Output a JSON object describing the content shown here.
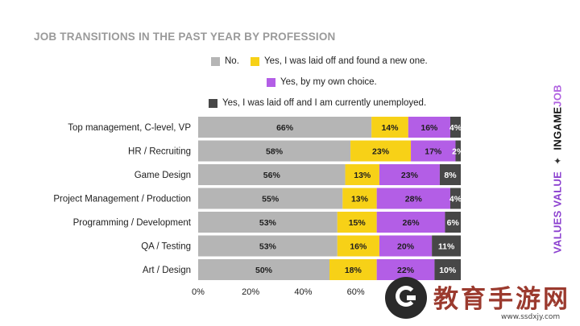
{
  "chart_data": {
    "type": "bar",
    "orientation": "horizontal",
    "stacked": true,
    "title": "JOB TRANSITIONS IN THE PAST YEAR BY PROFESSION",
    "categories": [
      "Top management, C-level, VP",
      "HR / Recruiting",
      "Game Design",
      "Project Management / Production",
      "Programming / Development",
      "QA / Testing",
      "Art / Design"
    ],
    "series": [
      {
        "name": "No.",
        "color": "#b5b5b5",
        "values": [
          66,
          58,
          56,
          55,
          53,
          53,
          50
        ]
      },
      {
        "name": "Yes, I was laid off and found a new one.",
        "color": "#f7d117",
        "values": [
          14,
          23,
          13,
          13,
          15,
          16,
          18
        ]
      },
      {
        "name": "Yes, by my own choice.",
        "color": "#b35ee6",
        "values": [
          16,
          17,
          23,
          28,
          26,
          20,
          22
        ]
      },
      {
        "name": "Yes, I was laid off and I am currently unemployed.",
        "color": "#474747",
        "values": [
          4,
          2,
          8,
          4,
          6,
          11,
          10
        ]
      }
    ],
    "data_labels": [
      [
        "66%",
        "14%",
        "16%",
        "4%"
      ],
      [
        "58%",
        "23%",
        "17%",
        "2%"
      ],
      [
        "56%",
        "13%",
        "23%",
        "8%"
      ],
      [
        "55%",
        "13%",
        "28%",
        "4%"
      ],
      [
        "53%",
        "15%",
        "26%",
        "6%"
      ],
      [
        "53%",
        "16%",
        "20%",
        "11%"
      ],
      [
        "50%",
        "18%",
        "22%",
        "10%"
      ]
    ],
    "xlim": [
      0,
      100
    ],
    "x_ticks": [
      "0%",
      "20%",
      "40%",
      "60%"
    ],
    "grid": false,
    "legend_position": "top"
  },
  "branding": {
    "slogan": "VALUES VALUE",
    "separator": "✦",
    "logo_main": "INGAME",
    "logo_accent": "JOB"
  },
  "watermark": {
    "text": "教育手游网",
    "url": "www.ssdxjy.com"
  }
}
